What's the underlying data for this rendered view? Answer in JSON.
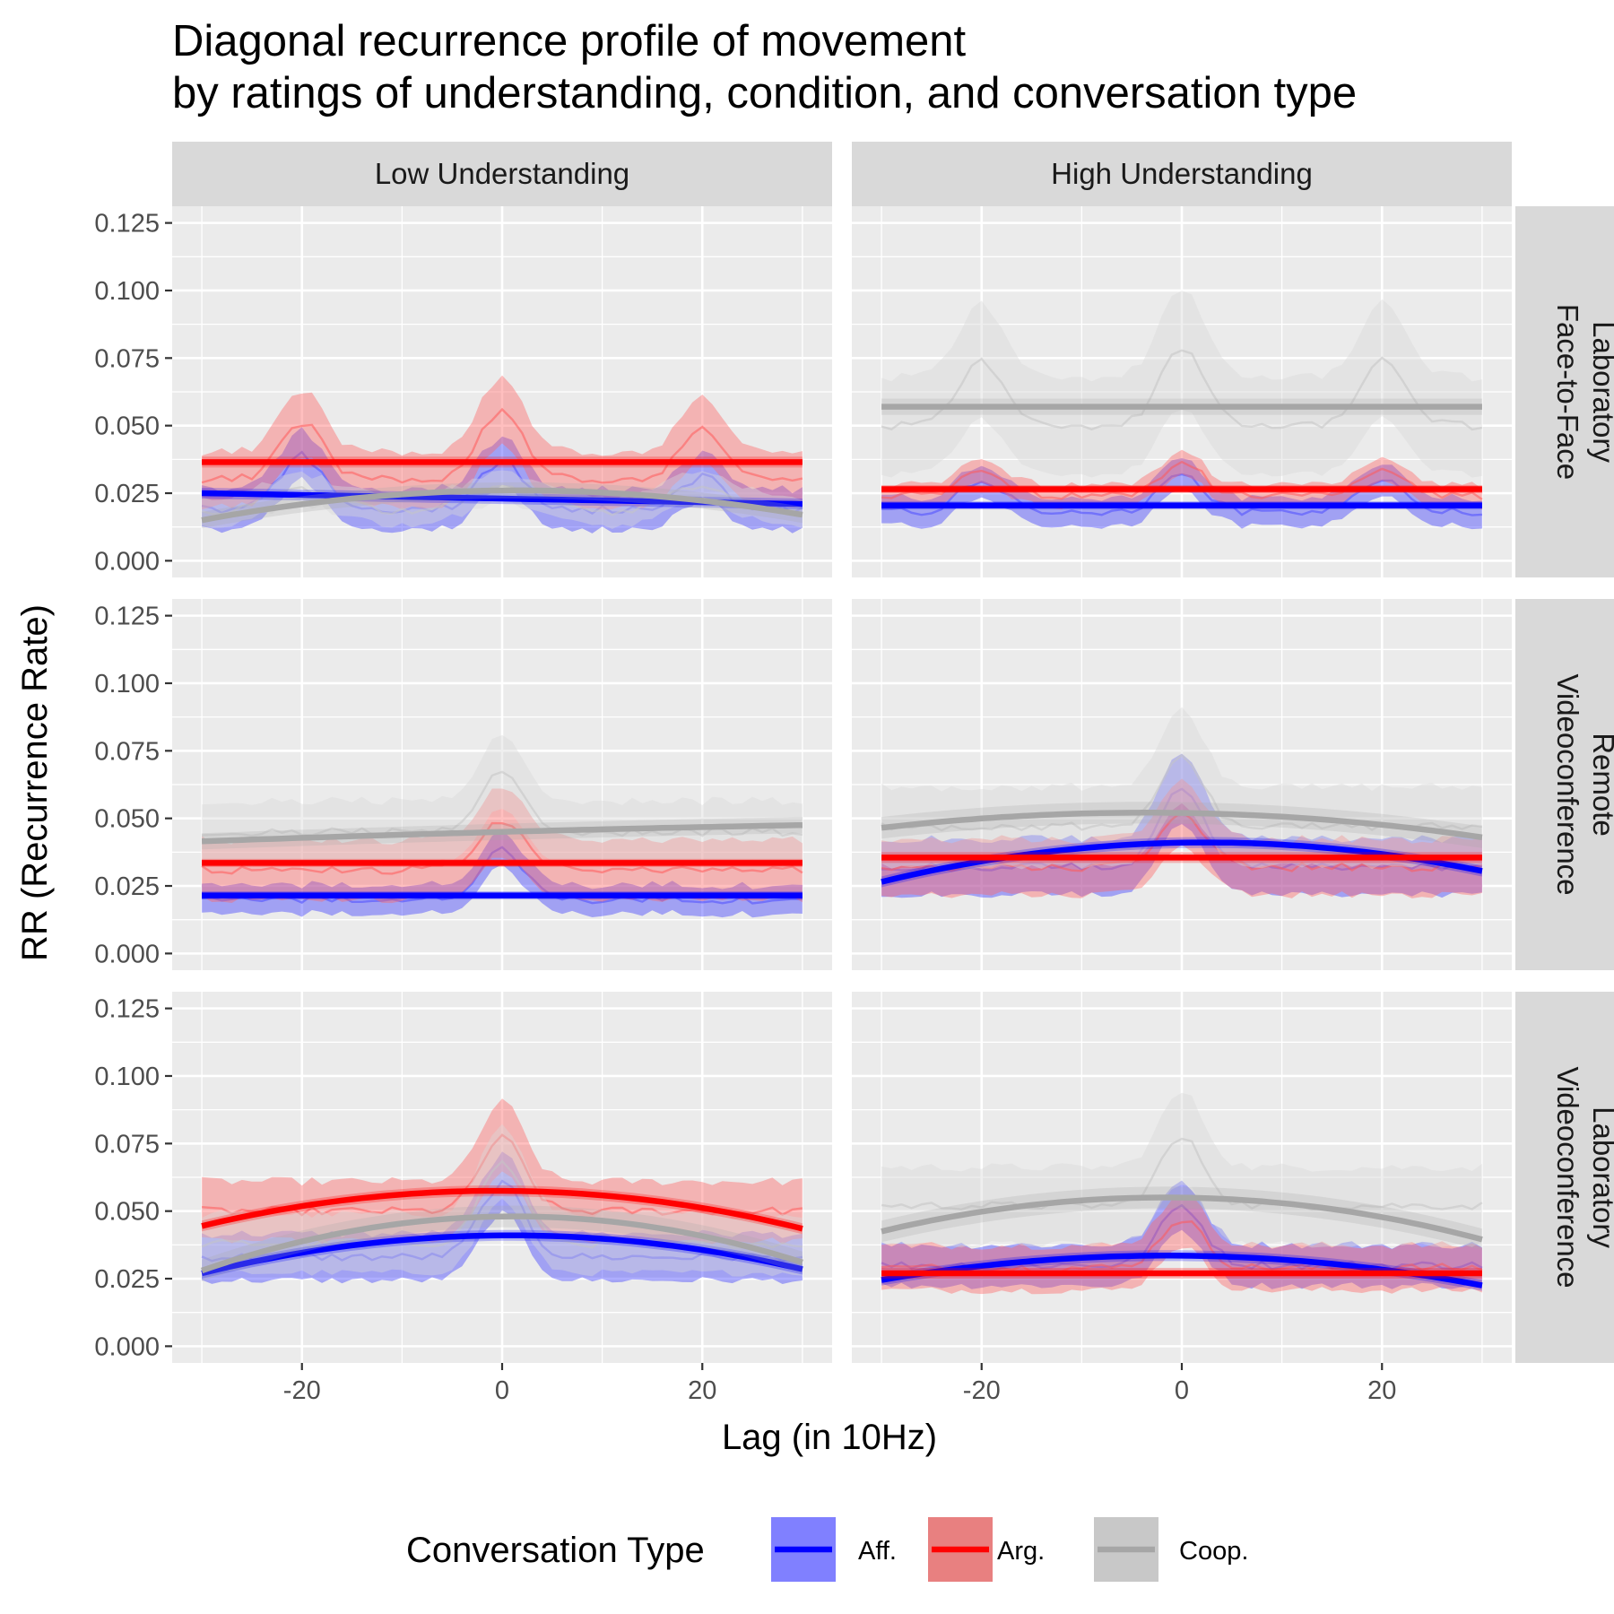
{
  "chart_data": {
    "type": "line",
    "title": [
      "Diagonal recurrence profile of movement",
      "by ratings of understanding, condition, and conversation type"
    ],
    "xlabel": "Lag (in 10Hz)",
    "ylabel": "RR (Recurrence Rate)",
    "xlim": [
      -30,
      30
    ],
    "ylim": [
      0,
      0.125
    ],
    "x_ticks": [
      -20,
      0,
      20
    ],
    "x_tick_labels": [
      "-20",
      "0",
      "20"
    ],
    "y_ticks": [
      0,
      0.025,
      0.05,
      0.075,
      0.1,
      0.125
    ],
    "y_tick_labels": [
      "0.000",
      "0.025",
      "0.050",
      "0.075",
      "0.100",
      "0.125"
    ],
    "grid": true,
    "legend": {
      "title": "Conversation Type",
      "position": "bottom",
      "entries": [
        {
          "label": "Aff.",
          "line_color": "#0000ff",
          "fill_color": "#8080ff"
        },
        {
          "label": "Arg.",
          "line_color": "#ff0000",
          "fill_color": "#e88080"
        },
        {
          "label": "Coop.",
          "line_color": "#a6a6a6",
          "fill_color": "#c8c8c8"
        }
      ]
    },
    "column_strips": [
      "Low Understanding",
      "High Understanding"
    ],
    "row_strips": [
      [
        "Laboratory",
        "Face-to-Face"
      ],
      [
        "Remote",
        "Videoconference"
      ],
      [
        "Laboratory",
        "Videoconference"
      ]
    ],
    "series_styles": {
      "Aff.": {
        "line": "#0000ff",
        "band": "#3b3bff",
        "raw": "#4d4dff"
      },
      "Arg.": {
        "line": "#ff0000",
        "band": "#ff6666",
        "raw": "#ff5a5a"
      },
      "Coop.": {
        "line": "#a6a6a6",
        "band": "#d9d9d9",
        "raw": "#c4c4c4"
      }
    },
    "panels": [
      {
        "understanding": "Low Understanding",
        "condition": "Laboratory Face-to-Face",
        "series": [
          {
            "name": "Aff.",
            "base": 0.019,
            "peak_heights": [
              0.02,
              0.018,
              0.012
            ],
            "band": 0.01,
            "fit": {
              "type": "poly",
              "at_min": 0.025,
              "at_zero": 0.023,
              "at_max": 0.021
            },
            "fit_band": 0.002
          },
          {
            "name": "Arg.",
            "base": 0.03,
            "peak_heights": [
              0.021,
              0.026,
              0.019
            ],
            "band": 0.012,
            "fit": {
              "type": "poly",
              "at_min": 0.0365,
              "at_zero": 0.0365,
              "at_max": 0.0365
            },
            "fit_band": 0.002
          },
          {
            "name": "Coop.",
            "base": 0.021,
            "peak_heights": [
              0.002,
              0.004,
              0.004
            ],
            "wave": 0.003,
            "band": 0.007,
            "fit": {
              "type": "poly",
              "at_min": 0.015,
              "at_zero": 0.026,
              "at_max": 0.017
            },
            "fit_band": 0.003
          }
        ]
      },
      {
        "understanding": "High Understanding",
        "condition": "Laboratory Face-to-Face",
        "series": [
          {
            "name": "Aff.",
            "base": 0.018,
            "peak_heights": [
              0.012,
              0.014,
              0.012
            ],
            "band": 0.007,
            "fit": {
              "type": "poly",
              "at_min": 0.0205,
              "at_zero": 0.0205,
              "at_max": 0.0205
            },
            "fit_band": 0.0015
          },
          {
            "name": "Arg.",
            "base": 0.024,
            "peak_heights": [
              0.009,
              0.012,
              0.01
            ],
            "band": 0.005,
            "fit": {
              "type": "poly",
              "at_min": 0.0265,
              "at_zero": 0.0265,
              "at_max": 0.0265
            },
            "fit_band": 0.0015
          },
          {
            "name": "Coop.",
            "base": 0.05,
            "peak_heights": [
              0.024,
              0.028,
              0.024
            ],
            "band": 0.018,
            "fit": {
              "type": "poly",
              "at_min": 0.057,
              "at_zero": 0.057,
              "at_max": 0.057
            },
            "fit_band": 0.003
          }
        ]
      },
      {
        "understanding": "Low Understanding",
        "condition": "Remote Videoconference",
        "series": [
          {
            "name": "Aff.",
            "base": 0.02,
            "peak_heights": [
              0,
              0.018,
              0
            ],
            "band": 0.007,
            "fit": {
              "type": "poly",
              "at_min": 0.0215,
              "at_zero": 0.0215,
              "at_max": 0.0215
            },
            "fit_band": 0.0015
          },
          {
            "name": "Arg.",
            "base": 0.031,
            "peak_heights": [
              0,
              0.018,
              0
            ],
            "band": 0.013,
            "fit": {
              "type": "poly",
              "at_min": 0.0335,
              "at_zero": 0.0335,
              "at_max": 0.0335
            },
            "fit_band": 0.0015
          },
          {
            "name": "Coop.",
            "base": 0.045,
            "peak_heights": [
              0,
              0.022,
              0
            ],
            "band": 0.012,
            "fit": {
              "type": "poly",
              "at_min": 0.0415,
              "at_zero": 0.045,
              "at_max": 0.0475
            },
            "fit_band": 0.003
          }
        ]
      },
      {
        "understanding": "High Understanding",
        "condition": "Remote Videoconference",
        "series": [
          {
            "name": "Aff.",
            "base": 0.032,
            "peak_heights": [
              0,
              0.03,
              0
            ],
            "band": 0.012,
            "fit": {
              "type": "poly",
              "at_min": 0.0265,
              "at_zero": 0.041,
              "at_max": 0.0305
            },
            "fit_band": 0.002
          },
          {
            "name": "Arg.",
            "base": 0.032,
            "peak_heights": [
              0,
              0.02,
              0
            ],
            "band": 0.012,
            "fit": {
              "type": "poly",
              "at_min": 0.0355,
              "at_zero": 0.0355,
              "at_max": 0.0355
            },
            "fit_band": 0.002
          },
          {
            "name": "Coop.",
            "base": 0.047,
            "peak_heights": [
              0,
              0.025,
              0
            ],
            "band": 0.015,
            "fit": {
              "type": "poly",
              "at_min": 0.0465,
              "at_zero": 0.052,
              "at_max": 0.043
            },
            "fit_band": 0.004
          }
        ]
      },
      {
        "understanding": "Low Understanding",
        "condition": "Laboratory Videoconference",
        "series": [
          {
            "name": "Aff.",
            "base": 0.033,
            "peak_heights": [
              0,
              0.027,
              0
            ],
            "band": 0.01,
            "fit": {
              "type": "poly",
              "at_min": 0.027,
              "at_zero": 0.041,
              "at_max": 0.0285
            },
            "fit_band": 0.002
          },
          {
            "name": "Arg.",
            "base": 0.05,
            "peak_heights": [
              0,
              0.027,
              0
            ],
            "band": 0.011,
            "fit": {
              "type": "poly",
              "at_min": 0.0445,
              "at_zero": 0.0575,
              "at_max": 0.0435
            },
            "fit_band": 0.002
          },
          {
            "name": "Coop.",
            "base": 0.038,
            "peak_heights": [
              0,
              0.03,
              0
            ],
            "band": 0.012,
            "fit": {
              "type": "poly",
              "at_min": 0.028,
              "at_zero": 0.048,
              "at_max": 0.031
            },
            "fit_band": 0.004
          }
        ]
      },
      {
        "understanding": "High Understanding",
        "condition": "Laboratory Videoconference",
        "series": [
          {
            "name": "Aff.",
            "base": 0.03,
            "peak_heights": [
              0,
              0.022,
              0
            ],
            "band": 0.009,
            "fit": {
              "type": "poly",
              "at_min": 0.0245,
              "at_zero": 0.0335,
              "at_max": 0.0225
            },
            "fit_band": 0.002
          },
          {
            "name": "Arg.",
            "base": 0.029,
            "peak_heights": [
              0,
              0.018,
              0
            ],
            "band": 0.01,
            "fit": {
              "type": "poly",
              "at_min": 0.027,
              "at_zero": 0.027,
              "at_max": 0.027
            },
            "fit_band": 0.002
          },
          {
            "name": "Coop.",
            "base": 0.052,
            "peak_heights": [
              0,
              0.025,
              0
            ],
            "band": 0.014,
            "fit": {
              "type": "poly",
              "at_min": 0.0425,
              "at_zero": 0.055,
              "at_max": 0.0395
            },
            "fit_band": 0.004
          }
        ]
      }
    ]
  }
}
